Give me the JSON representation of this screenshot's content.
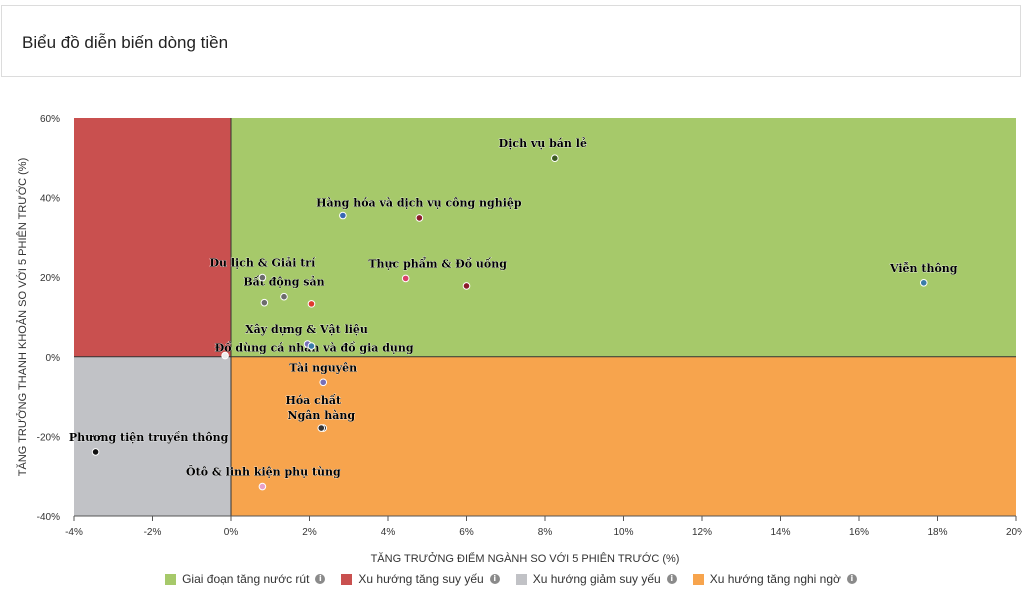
{
  "header": {
    "title": "Biểu đồ diễn biến dòng tiền"
  },
  "chart_data": {
    "type": "scatter",
    "title": "",
    "xlabel": "TĂNG TRƯỞNG ĐIỂM NGÀNH SO VỚI 5 PHIÊN TRƯỚC (%)",
    "ylabel": "TĂNG TRƯỞNG THANH KHOẢN SO VỚI 5 PHIÊN TRƯỚC (%)",
    "xlim": [
      -4,
      20
    ],
    "ylim": [
      -40,
      60
    ],
    "xticks": [
      -4,
      -2,
      0,
      2,
      4,
      6,
      8,
      10,
      12,
      14,
      16,
      18,
      20
    ],
    "yticks": [
      -40,
      -20,
      0,
      20,
      40,
      60
    ],
    "tick_suffix": "%",
    "grid": false,
    "legend_position": "bottom",
    "quadrants": [
      {
        "name": "Giai đoạn tăng nước rút",
        "color": "#a6c96a",
        "x": [
          0,
          20
        ],
        "y": [
          0,
          60
        ]
      },
      {
        "name": "Xu hướng tăng suy yếu",
        "color": "#c9504f",
        "x": [
          -4,
          0
        ],
        "y": [
          0,
          60
        ]
      },
      {
        "name": "Xu hướng giảm suy yếu",
        "color": "#c1c2c6",
        "x": [
          -4,
          0
        ],
        "y": [
          -40,
          0
        ]
      },
      {
        "name": "Xu hướng tăng nghi ngờ",
        "color": "#f7a44d",
        "x": [
          0,
          20
        ],
        "y": [
          -40,
          0
        ]
      }
    ],
    "points": [
      {
        "x": 8.25,
        "y": 49.9,
        "color": "#3c5a23",
        "label": "Dịch vụ bán lẻ"
      },
      {
        "x": 4.8,
        "y": 34.9,
        "color": "#8b1c2a",
        "label": ""
      },
      {
        "x": 2.85,
        "y": 35.5,
        "color": "#3867b3",
        "label": "Hàng hóa và dịch vụ công nghiệp"
      },
      {
        "x": 0.8,
        "y": 19.9,
        "color": "#6c6c6c",
        "label": "Du lịch & Giải trí"
      },
      {
        "x": 0.85,
        "y": 13.6,
        "color": "#6c6c6c",
        "label": ""
      },
      {
        "x": 1.35,
        "y": 15.1,
        "color": "#6c6c6c",
        "label": "Bất động sản"
      },
      {
        "x": 2.05,
        "y": 13.3,
        "color": "#e03a2f",
        "label": ""
      },
      {
        "x": 4.45,
        "y": 19.7,
        "color": "#d9416a",
        "label": "Thực phẩm & Đồ uống"
      },
      {
        "x": 6.0,
        "y": 17.8,
        "color": "#8b1c2a",
        "label": ""
      },
      {
        "x": 17.65,
        "y": 18.6,
        "color": "#3a7ca8",
        "label": "Viễn thông"
      },
      {
        "x": 1.95,
        "y": 3.2,
        "color": "#7770b8",
        "label": "Xây dựng & Vật liệu"
      },
      {
        "x": 2.05,
        "y": 2.7,
        "color": "#3a7ca8",
        "label": ""
      },
      {
        "x": -0.15,
        "y": 0.3,
        "color": "#eeeeee",
        "label": "Đồ dùng cá nhân và đồ gia dụng"
      },
      {
        "x": 2.35,
        "y": -6.4,
        "color": "#7770b8",
        "label": "Tài nguyên"
      },
      {
        "x": 2.35,
        "y": -17.9,
        "color": "#333333",
        "label": "Hóa chất"
      },
      {
        "x": 2.3,
        "y": -17.9,
        "color": "#333333",
        "label": "Ngân hàng"
      },
      {
        "x": -3.45,
        "y": -23.9,
        "color": "#111111",
        "label": "Phương tiện truyền thông"
      },
      {
        "x": 0.8,
        "y": -32.6,
        "color": "#e8a0c8",
        "label": "Ôtô & linh kiện phụ tùng"
      }
    ]
  }
}
